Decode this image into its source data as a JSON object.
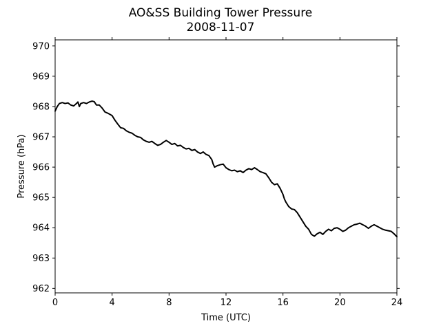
{
  "chart_data": {
    "type": "line",
    "title": "AO&SS Building Tower Pressure",
    "subtitle": "2008-11-07",
    "xlabel": "Time (UTC)",
    "ylabel": "Pressure (hPa)",
    "xlim": [
      0,
      24
    ],
    "ylim": [
      961.85,
      970.2
    ],
    "xticks": [
      "0",
      "4",
      "8",
      "12",
      "16",
      "20",
      "24"
    ],
    "yticks": [
      "962",
      "963",
      "964",
      "965",
      "966",
      "967",
      "968",
      "969",
      "970"
    ],
    "grid": false,
    "line_color": "#000000",
    "series": [
      {
        "x": [
          0.0,
          0.15,
          0.3,
          0.5,
          0.7,
          0.9,
          1.1,
          1.3,
          1.5,
          1.6,
          1.7,
          1.8,
          2.0,
          2.2,
          2.4,
          2.6,
          2.75,
          2.9,
          3.1,
          3.3,
          3.5,
          3.7,
          4.0,
          4.2,
          4.4,
          4.6,
          4.8,
          5.0,
          5.2,
          5.4,
          5.6,
          5.8,
          6.0,
          6.2,
          6.4,
          6.6,
          6.8,
          7.0,
          7.2,
          7.4,
          7.6,
          7.8,
          8.0,
          8.2,
          8.4,
          8.6,
          8.8,
          9.0,
          9.2,
          9.4,
          9.6,
          9.8,
          10.0,
          10.2,
          10.4,
          10.6,
          10.8,
          11.0,
          11.1,
          11.2,
          11.4,
          11.6,
          11.8,
          12.0,
          12.2,
          12.4,
          12.6,
          12.8,
          13.0,
          13.2,
          13.4,
          13.6,
          13.8,
          14.0,
          14.2,
          14.4,
          14.6,
          14.8,
          15.0,
          15.2,
          15.4,
          15.6,
          15.8,
          16.0,
          16.1,
          16.2,
          16.4,
          16.6,
          16.8,
          17.0,
          17.2,
          17.4,
          17.6,
          17.8,
          18.0,
          18.2,
          18.4,
          18.6,
          18.8,
          19.0,
          19.2,
          19.4,
          19.6,
          19.8,
          20.0,
          20.2,
          20.4,
          20.6,
          20.8,
          21.0,
          21.2,
          21.4,
          21.6,
          21.8,
          22.0,
          22.2,
          22.4,
          22.6,
          22.8,
          23.0,
          23.2,
          23.4,
          23.6,
          23.8,
          24.0
        ],
        "y": [
          967.85,
          968.0,
          968.1,
          968.13,
          968.1,
          968.12,
          968.05,
          968.02,
          968.1,
          968.15,
          968.0,
          968.1,
          968.13,
          968.1,
          968.15,
          968.18,
          968.16,
          968.05,
          968.05,
          967.95,
          967.82,
          967.78,
          967.7,
          967.55,
          967.42,
          967.3,
          967.28,
          967.2,
          967.15,
          967.12,
          967.05,
          967.0,
          966.98,
          966.9,
          966.85,
          966.82,
          966.85,
          966.78,
          966.72,
          966.75,
          966.82,
          966.88,
          966.82,
          966.75,
          966.78,
          966.7,
          966.72,
          966.65,
          966.6,
          966.62,
          966.55,
          966.58,
          966.5,
          966.45,
          966.5,
          966.42,
          966.38,
          966.25,
          966.1,
          966.0,
          966.05,
          966.08,
          966.1,
          965.98,
          965.92,
          965.88,
          965.9,
          965.85,
          965.88,
          965.82,
          965.9,
          965.95,
          965.92,
          965.98,
          965.92,
          965.85,
          965.82,
          965.78,
          965.65,
          965.5,
          965.42,
          965.45,
          965.3,
          965.1,
          964.95,
          964.85,
          964.7,
          964.62,
          964.6,
          964.5,
          964.35,
          964.2,
          964.05,
          963.95,
          963.78,
          963.72,
          963.8,
          963.85,
          963.78,
          963.88,
          963.95,
          963.9,
          963.98,
          964.0,
          963.95,
          963.88,
          963.92,
          964.0,
          964.05,
          964.1,
          964.12,
          964.15,
          964.1,
          964.05,
          963.98,
          964.05,
          964.1,
          964.05,
          964.0,
          963.95,
          963.92,
          963.9,
          963.88,
          963.8,
          963.7
        ]
      }
    ]
  }
}
